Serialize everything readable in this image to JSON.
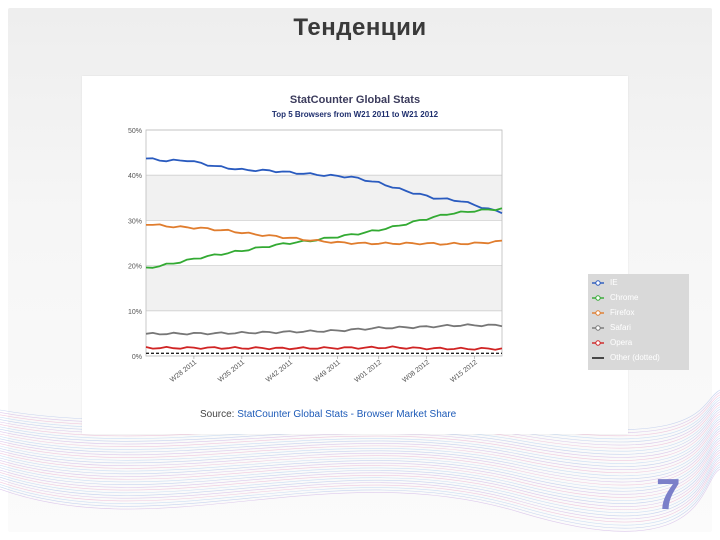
{
  "slide": {
    "title": "Тенденции",
    "page_number": "7"
  },
  "chart_data": {
    "type": "line",
    "title": "StatCounter Global Stats",
    "subtitle": "Top 5 Browsers from W21 2011 to W21 2012",
    "ylim": [
      0,
      50
    ],
    "yticks": [
      "0%",
      "10%",
      "20%",
      "30%",
      "40%",
      "50%"
    ],
    "ytick_values": [
      0,
      10,
      20,
      30,
      40,
      50
    ],
    "xticks": [
      "W28 2011",
      "W35 2011",
      "W42 2011",
      "W49 2011",
      "W01 2012",
      "W08 2012",
      "W15 2012"
    ],
    "xtick_positions": [
      7,
      14,
      21,
      28,
      34,
      41,
      48
    ],
    "x_count": 53,
    "series": [
      {
        "name": "IE",
        "color": "#2a5bbf",
        "keypoints": [
          [
            0,
            43.7
          ],
          [
            3,
            43.2
          ],
          [
            6,
            43.3
          ],
          [
            10,
            42.0
          ],
          [
            14,
            41.2
          ],
          [
            18,
            41.0
          ],
          [
            22,
            40.5
          ],
          [
            26,
            40.0
          ],
          [
            30,
            39.6
          ],
          [
            34,
            38.3
          ],
          [
            38,
            36.5
          ],
          [
            42,
            35.0
          ],
          [
            46,
            34.3
          ],
          [
            50,
            32.5
          ],
          [
            52,
            31.8
          ]
        ]
      },
      {
        "name": "Chrome",
        "color": "#33aa33",
        "keypoints": [
          [
            0,
            19.4
          ],
          [
            4,
            20.5
          ],
          [
            8,
            21.8
          ],
          [
            12,
            22.8
          ],
          [
            16,
            23.8
          ],
          [
            20,
            24.8
          ],
          [
            24,
            25.5
          ],
          [
            28,
            26.4
          ],
          [
            32,
            27.3
          ],
          [
            36,
            28.5
          ],
          [
            40,
            30.0
          ],
          [
            44,
            31.4
          ],
          [
            48,
            32.1
          ],
          [
            52,
            32.6
          ]
        ]
      },
      {
        "name": "Firefox",
        "color": "#e07d2e",
        "keypoints": [
          [
            0,
            29.2
          ],
          [
            4,
            28.6
          ],
          [
            8,
            28.3
          ],
          [
            12,
            27.7
          ],
          [
            16,
            26.9
          ],
          [
            20,
            26.3
          ],
          [
            24,
            25.6
          ],
          [
            28,
            25.1
          ],
          [
            32,
            24.9
          ],
          [
            36,
            24.9
          ],
          [
            40,
            24.9
          ],
          [
            44,
            24.8
          ],
          [
            48,
            24.9
          ],
          [
            52,
            25.4
          ]
        ]
      },
      {
        "name": "Safari",
        "color": "#777777",
        "keypoints": [
          [
            0,
            4.9
          ],
          [
            10,
            5.0
          ],
          [
            20,
            5.3
          ],
          [
            28,
            5.6
          ],
          [
            34,
            6.2
          ],
          [
            40,
            6.4
          ],
          [
            46,
            6.8
          ],
          [
            52,
            6.8
          ]
        ]
      },
      {
        "name": "Opera",
        "color": "#d02424",
        "keypoints": [
          [
            0,
            1.8
          ],
          [
            10,
            1.8
          ],
          [
            20,
            1.7
          ],
          [
            30,
            1.8
          ],
          [
            36,
            1.9
          ],
          [
            40,
            1.7
          ],
          [
            46,
            1.6
          ],
          [
            52,
            1.6
          ]
        ]
      },
      {
        "name": "Other (dotted)",
        "color": "#222222",
        "dashed": true,
        "keypoints": [
          [
            0,
            0.6
          ],
          [
            52,
            0.6
          ]
        ]
      }
    ],
    "legend": [
      "IE",
      "Chrome",
      "Firefox",
      "Safari",
      "Opera",
      "Other (dotted)"
    ],
    "legend_position": "right",
    "source_prefix": "Source: ",
    "source_link": "StatCounter Global Stats - Browser Market Share"
  }
}
